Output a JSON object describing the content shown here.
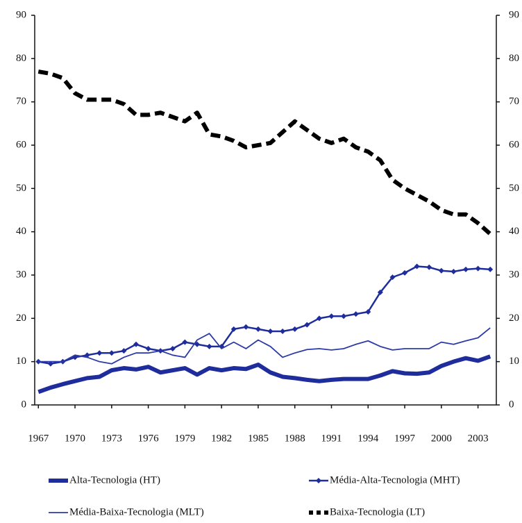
{
  "chart_data": {
    "type": "line",
    "x": [
      1967,
      1968,
      1969,
      1970,
      1971,
      1972,
      1973,
      1974,
      1975,
      1976,
      1977,
      1978,
      1979,
      1980,
      1981,
      1982,
      1983,
      1984,
      1985,
      1986,
      1987,
      1988,
      1989,
      1990,
      1991,
      1992,
      1993,
      1994,
      1995,
      1996,
      1997,
      1998,
      1999,
      2000,
      2001,
      2002,
      2003,
      2004
    ],
    "xlim": [
      1966.7,
      2004.5
    ],
    "xticks": [
      1967,
      1970,
      1973,
      1976,
      1979,
      1982,
      1985,
      1988,
      1991,
      1994,
      1997,
      2000,
      2003
    ],
    "ylim": [
      0,
      90
    ],
    "yticks": [
      0,
      10,
      20,
      30,
      40,
      50,
      60,
      70,
      80,
      90
    ],
    "y2lim": [
      0,
      90
    ],
    "y2ticks": [
      0,
      10,
      20,
      30,
      40,
      50,
      60,
      70,
      80,
      90
    ],
    "series": [
      {
        "name": "Alta-Tecnologia (HT)",
        "color": "#1f2d9c",
        "style": "thick",
        "values": [
          3,
          4,
          4.8,
          5.5,
          6.2,
          6.5,
          8,
          8.5,
          8.2,
          8.8,
          7.5,
          8,
          8.5,
          7,
          8.5,
          8,
          8.5,
          8.3,
          9.3,
          7.5,
          6.5,
          6.2,
          5.8,
          5.5,
          5.8,
          6,
          6,
          6,
          6.8,
          7.8,
          7.3,
          7.2,
          7.5,
          9,
          10,
          10.8,
          10.2,
          11.2
        ]
      },
      {
        "name": "Média-Alta-Tecnologia (MHT)",
        "color": "#1f2d9c",
        "style": "marker",
        "values": [
          10,
          9.5,
          10,
          11,
          11.5,
          12,
          12,
          12.5,
          14,
          13,
          12.5,
          13,
          14.5,
          14,
          13.5,
          13.5,
          17.5,
          18,
          17.5,
          17,
          17,
          17.5,
          18.5,
          20,
          20.5,
          20.5,
          21,
          21.5,
          26,
          29.5,
          30.5,
          32,
          31.8,
          31,
          30.8,
          31.3,
          31.5,
          31.3
        ]
      },
      {
        "name": "Média-Baixa-Tecnologia (MLT)",
        "color": "#2b3aa8",
        "style": "thin",
        "values": [
          10,
          10,
          10,
          11.5,
          11,
          10,
          9.5,
          11,
          12,
          12,
          12.5,
          11.5,
          11,
          15,
          16.5,
          13,
          14.5,
          13,
          15,
          13.5,
          11,
          12,
          12.8,
          13,
          12.7,
          13,
          14,
          14.8,
          13.5,
          12.7,
          13,
          13,
          13,
          14.5,
          14,
          14.8,
          15.5,
          17.8
        ]
      },
      {
        "name": "Baixa-Tecnologia (LT)",
        "color": "#000000",
        "style": "dashed",
        "values": [
          77,
          76.5,
          75.5,
          72,
          70.5,
          70.5,
          70.5,
          69.5,
          67,
          67,
          67.5,
          66.5,
          65.5,
          67.5,
          62.5,
          62,
          61,
          59.5,
          60,
          60.5,
          63,
          65.5,
          63.5,
          61.5,
          60.5,
          61.5,
          59.5,
          58.5,
          56.5,
          52,
          50,
          48.5,
          47,
          45,
          44,
          44,
          42,
          39.5
        ]
      }
    ]
  }
}
